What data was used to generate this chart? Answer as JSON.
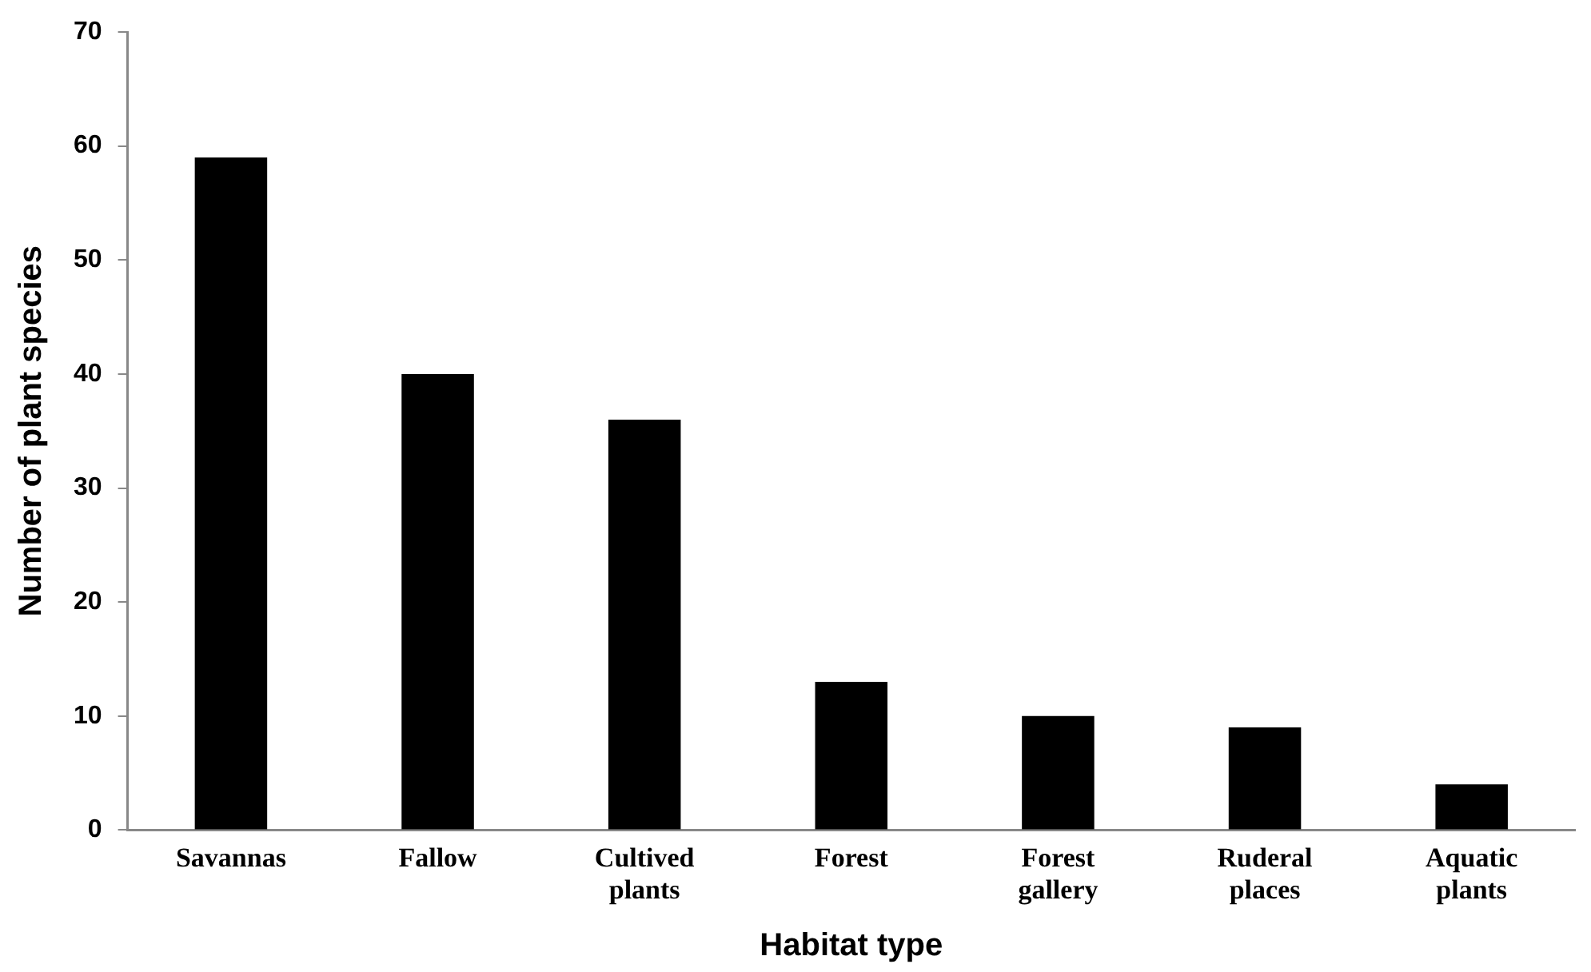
{
  "chart_data": {
    "type": "bar",
    "xlabel": "Habitat type",
    "ylabel": "Number of plant species",
    "categories": [
      "Savannas",
      "Fallow",
      "Cultived plants",
      "Forest",
      "Forest gallery",
      "Ruderal places",
      "Aquatic plants"
    ],
    "values": [
      59,
      40,
      36,
      13,
      10,
      9,
      4
    ],
    "color": "#000000",
    "ylim": [
      0,
      70
    ],
    "yticks": [
      0,
      10,
      20,
      30,
      40,
      50,
      60,
      70
    ],
    "grid": false,
    "legend": false
  }
}
